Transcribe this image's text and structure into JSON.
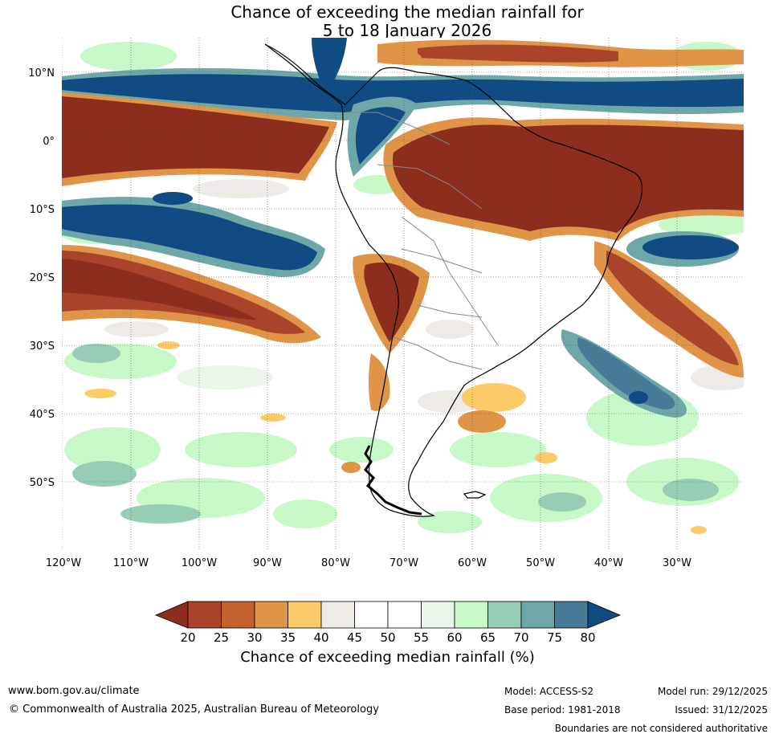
{
  "header": {
    "title_line1": "Chance of exceeding the median rainfall for",
    "title_line2": "5 to 18 January 2026"
  },
  "map": {
    "lat_labels": [
      "10°N",
      "0°",
      "10°S",
      "20°S",
      "30°S",
      "40°S",
      "50°S"
    ],
    "lon_labels": [
      "120°W",
      "110°W",
      "100°W",
      "90°W",
      "80°W",
      "70°W",
      "60°W",
      "50°W",
      "40°W",
      "30°W"
    ],
    "lat_range": [
      -60,
      15
    ],
    "lon_range": [
      -120,
      -20
    ]
  },
  "colorbar": {
    "ticks": [
      "20",
      "25",
      "30",
      "35",
      "40",
      "45",
      "50",
      "55",
      "60",
      "65",
      "70",
      "75",
      "80"
    ],
    "colors": [
      "#8c2d1e",
      "#a9432a",
      "#c4622e",
      "#df9447",
      "#fccb68",
      "#eeeae6",
      "#ffffff",
      "#ffffff",
      "#e9f6e9",
      "#c6f8c8",
      "#98cdb5",
      "#6ea7a8",
      "#477c98",
      "#114b84"
    ],
    "title": "Chance of exceeding median rainfall (%)"
  },
  "footer": {
    "url": "www.bom.gov.au/climate",
    "copyright": "© Commonwealth of Australia 2025, Australian Bureau of Meteorology",
    "model": "Model: ACCESS-S2",
    "base_period": "Base period: 1981-2018",
    "model_run": "Model run: 29/12/2025",
    "issued": "Issued: 31/12/2025",
    "disclaimer": "Boundaries are not considered authoritative"
  }
}
